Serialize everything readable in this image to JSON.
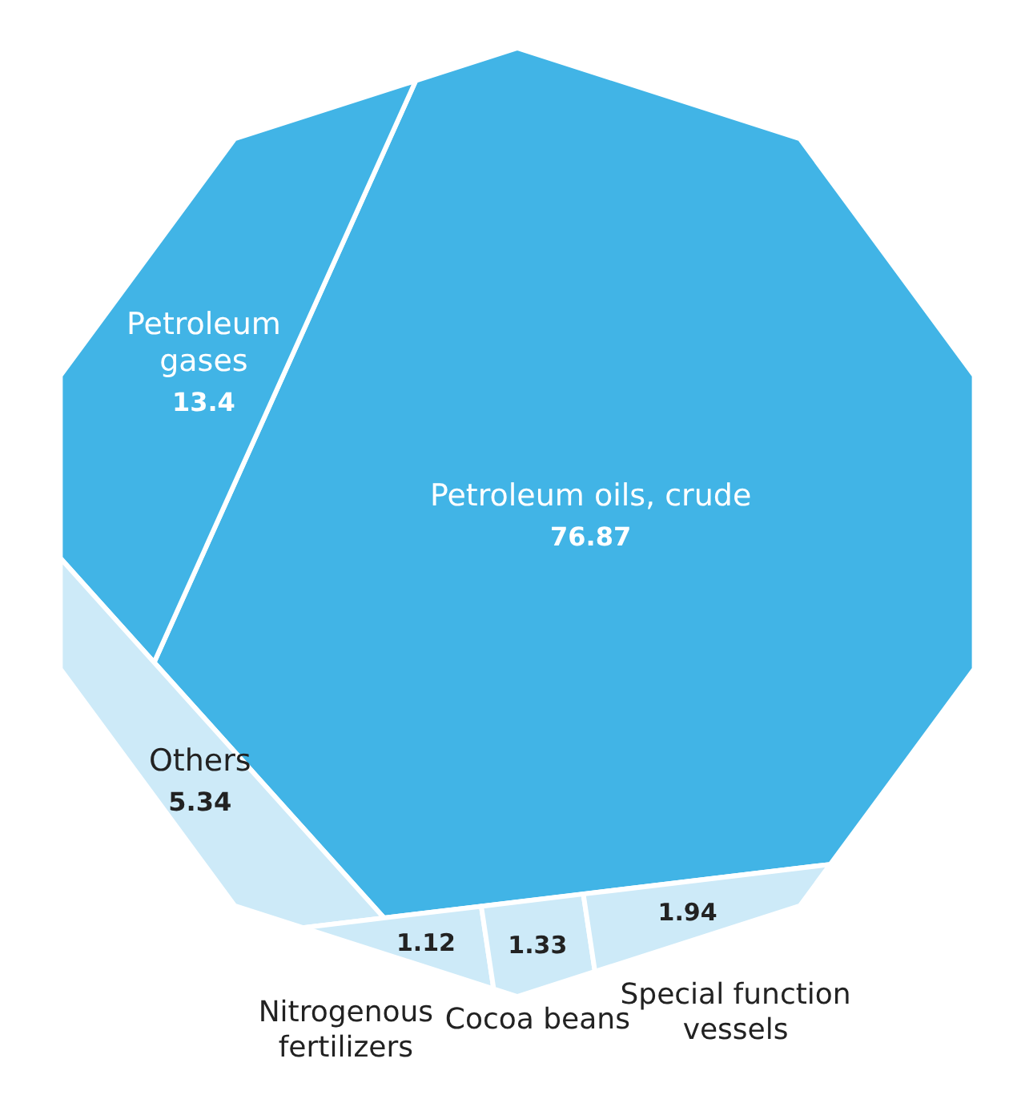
{
  "chart_data": {
    "type": "other",
    "categories": [
      "Petroleum oils, crude",
      "Petroleum gases",
      "Others",
      "Nitrogenous fertilizers",
      "Cocoa beans",
      "Special function vessels"
    ],
    "values": [
      76.87,
      13.4,
      5.34,
      1.12,
      1.33,
      1.94
    ],
    "colors": [
      "#41b4e6",
      "#41b4e6",
      "#cdeaf8",
      "#cdeaf8",
      "#cdeaf8",
      "#cdeaf8"
    ],
    "data_labels": true
  }
}
